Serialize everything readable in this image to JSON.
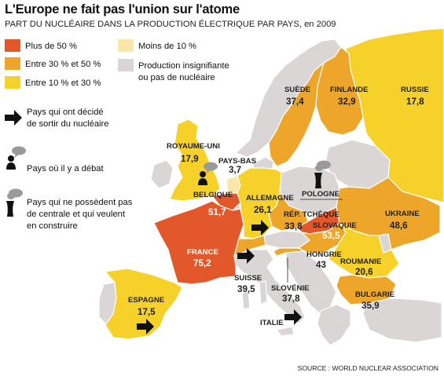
{
  "title": "L'Europe ne fait pas l'union sur l'atome",
  "subtitle": "PART DU NUCLÉAIRE DANS LA PRODUCTION ÉLECTRIQUE PAR PAYS, en 2009",
  "source": "SOURCE : WORLD NUCLEAR ASSOCIATION",
  "colors": {
    "over50": "#e2582a",
    "from30to50": "#eda52a",
    "from10to30": "#f6d12a",
    "under10": "#f8e7a8",
    "none": "#d9d6d5",
    "sea": "#ffffff",
    "border": "#ffffff"
  },
  "legend": {
    "over50": "Plus de 50 %",
    "from30to50": "Entre 30 % et 50 %",
    "from10to30": "Entre 10 % et 30 %",
    "under10": "Moins de 10 %",
    "none_line1": "Production insignifiante",
    "none_line2": "ou pas de nucléaire",
    "exit_line1": "Pays qui ont décidé",
    "exit_line2": "de sortir du nucléaire",
    "debate": "Pays où il y a débat",
    "build_line1": "Pays qui ne possèdent pas",
    "build_line2": "de centrale et qui veulent",
    "build_line3": "en construire"
  },
  "icons": {
    "exit": "arrow-right-icon",
    "debate": "person-speech-bubble-icon",
    "build": "cooling-tower-smoke-icon"
  },
  "countries": [
    {
      "id": "royaume-uni",
      "name": "ROYAUME-UNI",
      "value": "17,9",
      "category": "from10to30"
    },
    {
      "id": "pays-bas",
      "name": "PAYS-BAS",
      "value": "3,7",
      "category": "under10"
    },
    {
      "id": "belgique",
      "name": "BELGIQUE",
      "value": "51,7",
      "category": "over50",
      "marker": "debate"
    },
    {
      "id": "france",
      "name": "FRANCE",
      "value": "75,2",
      "category": "over50"
    },
    {
      "id": "espagne",
      "name": "ESPAGNE",
      "value": "17,5",
      "category": "from10to30",
      "marker": "exit"
    },
    {
      "id": "suisse",
      "name": "SUISSE",
      "value": "39,5",
      "category": "from30to50",
      "marker": "exit"
    },
    {
      "id": "allemagne",
      "name": "ALLEMAGNE",
      "value": "26,1",
      "category": "from10to30",
      "marker": "exit"
    },
    {
      "id": "rep-tcheque",
      "name": "RÉP. TCHÈQUE",
      "value": "33,8",
      "category": "from30to50"
    },
    {
      "id": "slovaquie",
      "name": "SLOVAQUIE",
      "value": "53,5",
      "category": "over50"
    },
    {
      "id": "hongrie",
      "name": "HONGRIE",
      "value": "43",
      "category": "from30to50"
    },
    {
      "id": "slovenie",
      "name": "SLOVÉNIE",
      "value": "37,8",
      "category": "from30to50"
    },
    {
      "id": "italie",
      "name": "ITALIE",
      "value": "",
      "category": "none",
      "marker": "exit"
    },
    {
      "id": "roumanie",
      "name": "ROUMANIE",
      "value": "20,6",
      "category": "from10to30"
    },
    {
      "id": "bulgarie",
      "name": "BULGARIE",
      "value": "35,9",
      "category": "from30to50"
    },
    {
      "id": "ukraine",
      "name": "UKRAINE",
      "value": "48,6",
      "category": "from30to50"
    },
    {
      "id": "pologne",
      "name": "POLOGNE",
      "value": "",
      "category": "none",
      "marker": "build"
    },
    {
      "id": "suede",
      "name": "SUÈDE",
      "value": "37,4",
      "category": "from30to50"
    },
    {
      "id": "finlande",
      "name": "FINLANDE",
      "value": "32,9",
      "category": "from30to50"
    },
    {
      "id": "russie",
      "name": "RUSSIE",
      "value": "17,8",
      "category": "from10to30"
    }
  ]
}
